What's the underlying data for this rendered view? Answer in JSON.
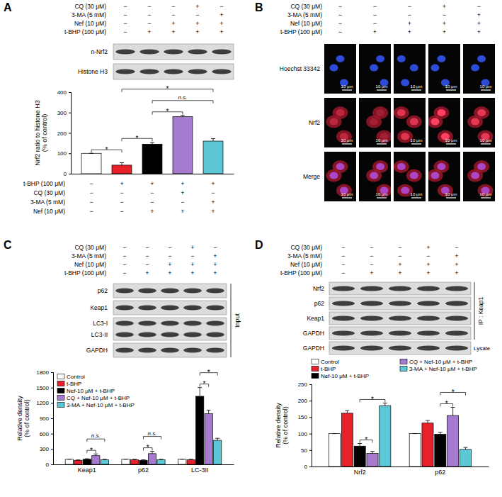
{
  "chart_data": [
    {
      "type": "bar",
      "y_label": "Nrf2 ratio to histone H3 (% of control)",
      "categories": [
        null,
        null,
        null,
        null,
        null
      ],
      "values": [
        100,
        42,
        145,
        280,
        160
      ],
      "errors": [
        0,
        12,
        8,
        6,
        12
      ],
      "colors": [
        "#ffffff",
        "#e8202a",
        "#000000",
        "#a57bd0",
        "#5cc8d6"
      ],
      "ylim": [
        0,
        400
      ],
      "yticks": [
        0,
        100,
        200,
        300,
        400
      ],
      "tick_labels": "y",
      "annotations": [
        {
          "text": "*",
          "from": 0,
          "to": 1
        },
        {
          "text": "*",
          "from": 1,
          "to": 2
        },
        {
          "text": "*",
          "from": 2,
          "to": 3
        },
        {
          "text": "n.s.",
          "from": 2,
          "to": 4
        },
        {
          "text": "*",
          "from": 1,
          "to": 4
        }
      ]
    },
    {
      "type": "bar",
      "y_label": "Relative density (% of control)",
      "categories": [
        "Keap1",
        "p62",
        "LC-3II"
      ],
      "series": [
        {
          "name": "Control",
          "color": "#ffffff",
          "values": [
            100,
            100,
            100
          ],
          "errors": [
            0,
            0,
            0
          ]
        },
        {
          "name": "t-BHP",
          "color": "#e8202a",
          "values": [
            80,
            90,
            90
          ],
          "errors": [
            8,
            10,
            10
          ]
        },
        {
          "name": "Nef-10 μM + t-BHP",
          "color": "#000000",
          "values": [
            100,
            80,
            1330
          ],
          "errors": [
            10,
            10,
            170
          ]
        },
        {
          "name": "CQ + Nef-10 μM + t-BHP",
          "color": "#a57bd0",
          "values": [
            170,
            210,
            990
          ],
          "errors": [
            35,
            45,
            70
          ]
        },
        {
          "name": "3-MA + Nef-10 μM + t-BHP",
          "color": "#5cc8d6",
          "values": [
            90,
            90,
            470
          ],
          "errors": [
            10,
            10,
            40
          ]
        }
      ],
      "ylim": [
        0,
        1800
      ],
      "yticks": [
        0,
        300,
        600,
        900,
        1200,
        1500,
        1800
      ],
      "legend": "upper left",
      "annotations": [
        {
          "text": "*",
          "category": 0,
          "from": 2,
          "to": 3
        },
        {
          "text": "n.s.",
          "category": 0,
          "from": 2,
          "to": 4
        },
        {
          "text": "*",
          "category": 1,
          "from": 2,
          "to": 3
        },
        {
          "text": "n.s.",
          "category": 1,
          "from": 2,
          "to": 4
        },
        {
          "text": "*",
          "category": 2,
          "from": 2,
          "to": 3
        },
        {
          "text": "*",
          "category": 2,
          "from": 2,
          "to": 4
        }
      ]
    },
    {
      "type": "bar",
      "y_label": "Relative density (% of control)",
      "categories": [
        "Nrf2",
        "p62"
      ],
      "series": [
        {
          "name": "Control",
          "color": "#ffffff",
          "values": [
            100,
            100
          ],
          "errors": [
            0,
            0
          ]
        },
        {
          "name": "t-BHP",
          "color": "#e8202a",
          "values": [
            162,
            132
          ],
          "errors": [
            8,
            8
          ]
        },
        {
          "name": "Nef-10 μM + t-BHP",
          "color": "#000000",
          "values": [
            62,
            98
          ],
          "errors": [
            8,
            6
          ]
        },
        {
          "name": "CQ + Nef-10 μM + t-BHP",
          "color": "#a57bd0",
          "values": [
            40,
            155
          ],
          "errors": [
            6,
            25
          ]
        },
        {
          "name": "3-MA + Nef-10 μM + t-BHP",
          "color": "#5cc8d6",
          "values": [
            185,
            52
          ],
          "errors": [
            8,
            6
          ]
        }
      ],
      "ylim": [
        0,
        250
      ],
      "yticks": [
        0,
        50,
        100,
        150,
        200,
        250
      ],
      "legend": "top",
      "annotations": [
        {
          "text": "*",
          "category": 0,
          "from": 2,
          "to": 3
        },
        {
          "text": "*",
          "category": 0,
          "from": 2,
          "to": 4
        },
        {
          "text": "*",
          "category": 1,
          "from": 2,
          "to": 3
        },
        {
          "text": "*",
          "category": 1,
          "from": 2,
          "to": 4
        }
      ]
    }
  ],
  "panels": [
    {
      "letter": "A",
      "treatments": [
        {
          "label": "CQ (30 μM)",
          "signs": [
            "−",
            "−",
            "−",
            "+",
            "−"
          ]
        },
        {
          "label": "3-MA (5 mM)",
          "signs": [
            "−",
            "−",
            "−",
            "−",
            "+"
          ]
        },
        {
          "label": "Nef (10 μM)",
          "signs": [
            "−",
            "−",
            "+",
            "+",
            "+"
          ]
        },
        {
          "label": "t-BHP (100 μM)",
          "signs": [
            "−",
            "+",
            "+",
            "+",
            "+"
          ]
        }
      ],
      "blots": [
        {
          "labels": [
            "n-Nrf2"
          ]
        },
        {
          "labels": [
            "Histone H3"
          ]
        }
      ],
      "bottom_treatments": [
        {
          "label": "t-BHP (100 μM)",
          "signs": [
            "−",
            "+",
            "+",
            "+",
            "+"
          ]
        },
        {
          "label": "CQ (30 μM)",
          "signs": [
            "−",
            "−",
            "−",
            "+",
            "−"
          ]
        },
        {
          "label": "3-MA (5 mM)",
          "signs": [
            "−",
            "−",
            "−",
            "−",
            "+"
          ]
        },
        {
          "label": "Nef (10 μM)",
          "signs": [
            "−",
            "−",
            "+",
            "+",
            "+"
          ]
        }
      ]
    },
    {
      "letter": "B",
      "treatments": [
        {
          "label": "CQ (30 μM)",
          "signs": [
            "−",
            "−",
            "−",
            "+",
            "−"
          ]
        },
        {
          "label": "3-MA (5 mM)",
          "signs": [
            "−",
            "−",
            "−",
            "−",
            "+"
          ]
        },
        {
          "label": "Nef (10 μM)",
          "signs": [
            "−",
            "−",
            "+",
            "+",
            "+"
          ]
        },
        {
          "label": "t-BHP (100 μM)",
          "signs": [
            "−",
            "+",
            "+",
            "+",
            "+"
          ]
        }
      ],
      "image_rows": [
        "Hoechst 33342",
        "Nrf2",
        "Merge"
      ],
      "scale_bar": "10 μm"
    },
    {
      "letter": "C",
      "treatments": [
        {
          "label": "CQ (30 μM)",
          "signs": [
            "−",
            "−",
            "−",
            "+",
            "−"
          ]
        },
        {
          "label": "3-MA (5 mM)",
          "signs": [
            "−",
            "−",
            "−",
            "−",
            "+"
          ]
        },
        {
          "label": "Nef (10 μM)",
          "signs": [
            "−",
            "−",
            "+",
            "+",
            "+"
          ]
        },
        {
          "label": "t-BHP (100 μM)",
          "signs": [
            "−",
            "+",
            "+",
            "+",
            "+"
          ]
        }
      ],
      "blots": [
        {
          "labels": [
            "p62"
          ]
        },
        {
          "labels": [
            "Keap1"
          ]
        },
        {
          "labels": [
            "LC3-I",
            "LC3-II"
          ]
        },
        {
          "labels": [
            "GAPDH"
          ]
        }
      ],
      "group_labels": [
        "Input"
      ]
    },
    {
      "letter": "D",
      "treatments": [
        {
          "label": "CQ (30 μM)",
          "signs": [
            "−",
            "−",
            "−",
            "+",
            "−"
          ]
        },
        {
          "label": "3-MA (5 mM)",
          "signs": [
            "−",
            "−",
            "−",
            "−",
            "+"
          ]
        },
        {
          "label": "Nef (10 μM)",
          "signs": [
            "−",
            "−",
            "+",
            "+",
            "+"
          ]
        },
        {
          "label": "t-BHP (100 μM)",
          "signs": [
            "−",
            "+",
            "+",
            "+",
            "+"
          ]
        }
      ],
      "blots": [
        {
          "labels": [
            "Nrf2"
          ]
        },
        {
          "labels": [
            "p62"
          ]
        },
        {
          "labels": [
            "Keap1"
          ]
        },
        {
          "labels": [
            "GAPDH"
          ]
        },
        {
          "labels": [
            "GAPDH"
          ]
        }
      ],
      "group_labels": [
        "IP : Keap1",
        "Lysate"
      ]
    }
  ]
}
